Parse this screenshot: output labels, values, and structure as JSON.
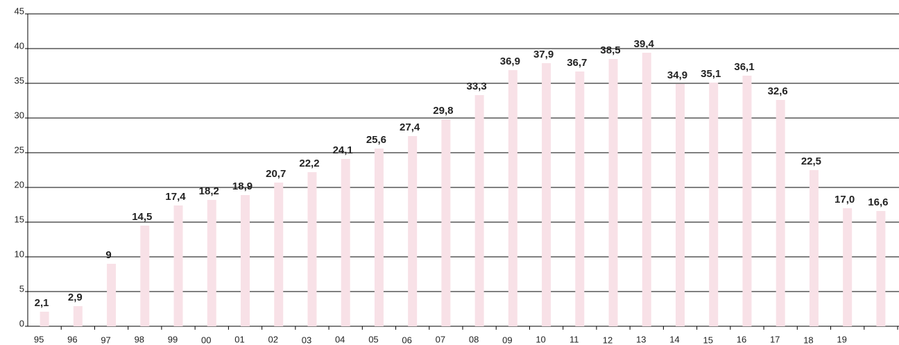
{
  "chart_data": {
    "type": "bar",
    "categories": [
      "95",
      "96",
      "97",
      "98",
      "99",
      "00",
      "01",
      "02",
      "03",
      "04",
      "05",
      "06",
      "07",
      "08",
      "09",
      "10",
      "11",
      "12",
      "13",
      "14",
      "15",
      "16",
      "17",
      "18",
      "19",
      null
    ],
    "values": [
      2.1,
      2.9,
      9,
      14.5,
      17.4,
      18.2,
      18.9,
      20.7,
      22.2,
      24.1,
      25.6,
      27.4,
      29.8,
      33.3,
      36.9,
      37.9,
      36.7,
      38.5,
      39.4,
      34.9,
      35.1,
      36.1,
      32.6,
      22.5,
      17.0,
      16.6
    ],
    "value_labels": [
      "2,1",
      "2,9",
      "9",
      "14,5",
      "17,4",
      "18,2",
      "18,9",
      "20,7",
      "22,2",
      "24,1",
      "25,6",
      "27,4",
      "29,8",
      "33,3",
      "36,9",
      "37,9",
      "36,7",
      "38,5",
      "39,4",
      "34,9",
      "35,1",
      "36,1",
      "32,6",
      "22,5",
      "17,0",
      "16,6"
    ],
    "color": "#f8e1e7",
    "ylim": [
      0,
      45
    ],
    "yticks": [
      0,
      5,
      10,
      15,
      20,
      25,
      30,
      35,
      40,
      45
    ],
    "grid": true
  }
}
